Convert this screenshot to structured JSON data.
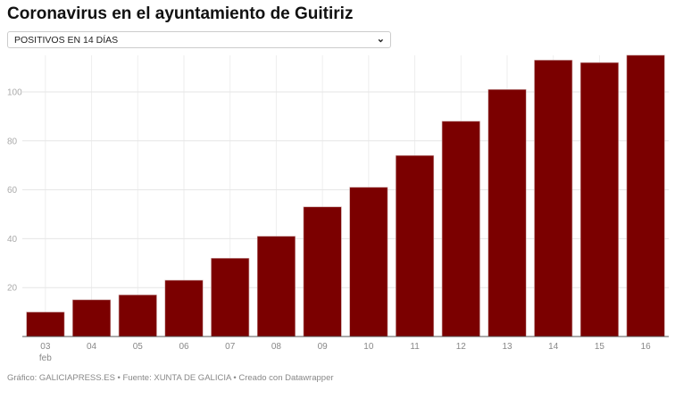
{
  "title": "Coronavirus en el ayuntamiento de Guitiriz",
  "dropdown": {
    "selected": "POSITIVOS EN 14 DÍAS",
    "icon": "chevron-down-icon"
  },
  "footer": "Gráfico: GALICIAPRESS.ES • Fuente: XUNTA DE GALICIA • Creado con Datawrapper",
  "chart_data": {
    "type": "bar",
    "categories": [
      "03",
      "04",
      "05",
      "06",
      "07",
      "08",
      "09",
      "10",
      "11",
      "12",
      "13",
      "14",
      "15",
      "16"
    ],
    "category_sublabels": {
      "03": "feb"
    },
    "values": [
      10,
      15,
      17,
      23,
      32,
      41,
      53,
      61,
      74,
      88,
      101,
      113,
      112,
      115
    ],
    "yticks": [
      20,
      40,
      60,
      80,
      100
    ],
    "ylim": [
      0,
      115
    ],
    "grid": true,
    "bar_color": "#7b0000"
  }
}
